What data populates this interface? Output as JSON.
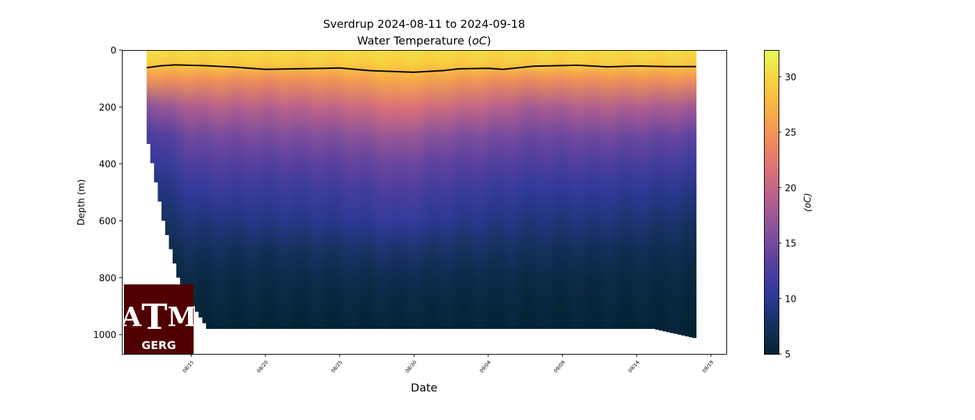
{
  "chart_data": {
    "type": "heatmap",
    "title": "Sverdrup 2024-08-11 to 2024-09-18",
    "subtitle": "Water Temperature (",
    "subtitle_unit": "oC",
    "xlabel": "Date",
    "ylabel": "Depth (m)",
    "colorbar_label": "(oC)",
    "x_ticks": [
      "08/15",
      "08/20",
      "08/25",
      "08/30",
      "09/04",
      "09/09",
      "09/14",
      "09/19"
    ],
    "x_tick_dates": [
      "2024-08-15",
      "2024-08-20",
      "2024-08-25",
      "2024-08-30",
      "2024-09-04",
      "2024-09-09",
      "2024-09-14",
      "2024-09-19"
    ],
    "xlim": [
      "2024-08-10T08:00",
      "2024-09-20T01:00"
    ],
    "y_ticks": [
      0,
      200,
      400,
      600,
      800,
      1000
    ],
    "ylim": [
      1068,
      0
    ],
    "y_inverted": true,
    "colorbar_ticks": [
      5,
      10,
      15,
      20,
      25,
      30
    ],
    "clim": [
      5,
      32.4
    ],
    "colormap": [
      "#042333",
      "#16315f",
      "#2e3a9a",
      "#573f9e",
      "#83509c",
      "#b05e8f",
      "#d9707a",
      "#f08a5c",
      "#f8ad45",
      "#f8d13e",
      "#e8fa5b"
    ],
    "depth_levels": [
      0,
      50,
      100,
      200,
      300,
      400,
      500,
      600,
      700,
      800,
      900,
      1000
    ],
    "profiles": [
      {
        "date": "2024-08-12",
        "max_depth": 330,
        "temps": [
          30.5,
          29,
          25,
          16,
          12,
          10,
          8.5,
          7.5,
          6.5,
          6,
          5.5,
          5.2
        ]
      },
      {
        "date": "2024-08-13",
        "max_depth": 600,
        "temps": [
          30.5,
          29,
          25,
          17,
          13,
          11,
          9,
          8,
          7,
          6,
          5.5,
          5.2
        ]
      },
      {
        "date": "2024-08-14",
        "max_depth": 800,
        "temps": [
          30.5,
          29,
          25,
          18,
          14,
          12,
          10,
          8.5,
          7,
          6,
          5.5,
          5.2
        ]
      },
      {
        "date": "2024-08-15",
        "max_depth": 900,
        "temps": [
          30.5,
          29,
          25,
          18.5,
          15,
          12.5,
          10.5,
          9,
          7.5,
          6.2,
          5.6,
          5.2
        ]
      },
      {
        "date": "2024-08-16",
        "max_depth": 980,
        "temps": [
          30.5,
          29,
          25,
          19,
          15,
          13,
          11,
          9,
          7.5,
          6.2,
          5.6,
          5.2
        ]
      },
      {
        "date": "2024-08-20",
        "max_depth": 980,
        "temps": [
          30.5,
          29,
          24.5,
          19,
          15.5,
          13,
          11,
          9.5,
          7.5,
          6.3,
          5.6,
          5.2
        ]
      },
      {
        "date": "2024-08-25",
        "max_depth": 980,
        "temps": [
          30.5,
          29,
          25.5,
          20,
          16,
          13.5,
          11.5,
          10,
          8,
          6.5,
          5.7,
          5.2
        ]
      },
      {
        "date": "2024-08-29",
        "max_depth": 980,
        "temps": [
          30.5,
          29.5,
          27,
          22,
          17.5,
          14.5,
          12.5,
          11,
          8.5,
          6.8,
          5.8,
          5.2
        ]
      },
      {
        "date": "2024-09-01",
        "max_depth": 980,
        "temps": [
          30.5,
          29,
          26,
          20.5,
          16,
          13.5,
          11.5,
          10,
          8,
          6.5,
          5.7,
          5.2
        ]
      },
      {
        "date": "2024-09-04",
        "max_depth": 980,
        "temps": [
          30.5,
          29,
          25,
          19.5,
          15.5,
          13,
          11,
          9.5,
          7.8,
          6.4,
          5.6,
          5.2
        ]
      },
      {
        "date": "2024-09-07",
        "max_depth": 980,
        "temps": [
          30.5,
          29,
          24.5,
          18,
          14.5,
          12.5,
          10.5,
          9,
          7.5,
          6.2,
          5.5,
          5.2
        ]
      },
      {
        "date": "2024-09-11",
        "max_depth": 980,
        "temps": [
          30.5,
          29,
          25,
          19,
          15,
          12.5,
          10.5,
          9,
          7.3,
          6.1,
          5.5,
          5.2
        ]
      },
      {
        "date": "2024-09-15",
        "max_depth": 980,
        "temps": [
          30.5,
          29,
          25,
          18.5,
          14.5,
          12,
          10,
          8.5,
          7,
          6,
          5.5,
          5.2
        ]
      },
      {
        "date": "2024-09-18",
        "max_depth": 1015,
        "temps": [
          30.5,
          29,
          25,
          18,
          14,
          11.5,
          9.5,
          8,
          6.8,
          6,
          5.5,
          5.2
        ]
      }
    ],
    "mixed_layer_depth": {
      "color": "#000000",
      "dates": [
        "2024-08-12",
        "2024-08-13",
        "2024-08-14",
        "2024-08-16",
        "2024-08-18",
        "2024-08-20",
        "2024-08-22",
        "2024-08-24",
        "2024-08-25",
        "2024-08-27",
        "2024-08-29",
        "2024-08-30",
        "2024-09-01",
        "2024-09-02",
        "2024-09-04",
        "2024-09-05",
        "2024-09-07",
        "2024-09-10",
        "2024-09-12",
        "2024-09-14",
        "2024-09-16",
        "2024-09-18"
      ],
      "depths": [
        62,
        55,
        52,
        55,
        60,
        68,
        66,
        64,
        63,
        72,
        76,
        78,
        72,
        66,
        64,
        68,
        57,
        53,
        59,
        56,
        58,
        58
      ]
    }
  },
  "logo": {
    "text": "ATM",
    "caption": "GERG"
  }
}
